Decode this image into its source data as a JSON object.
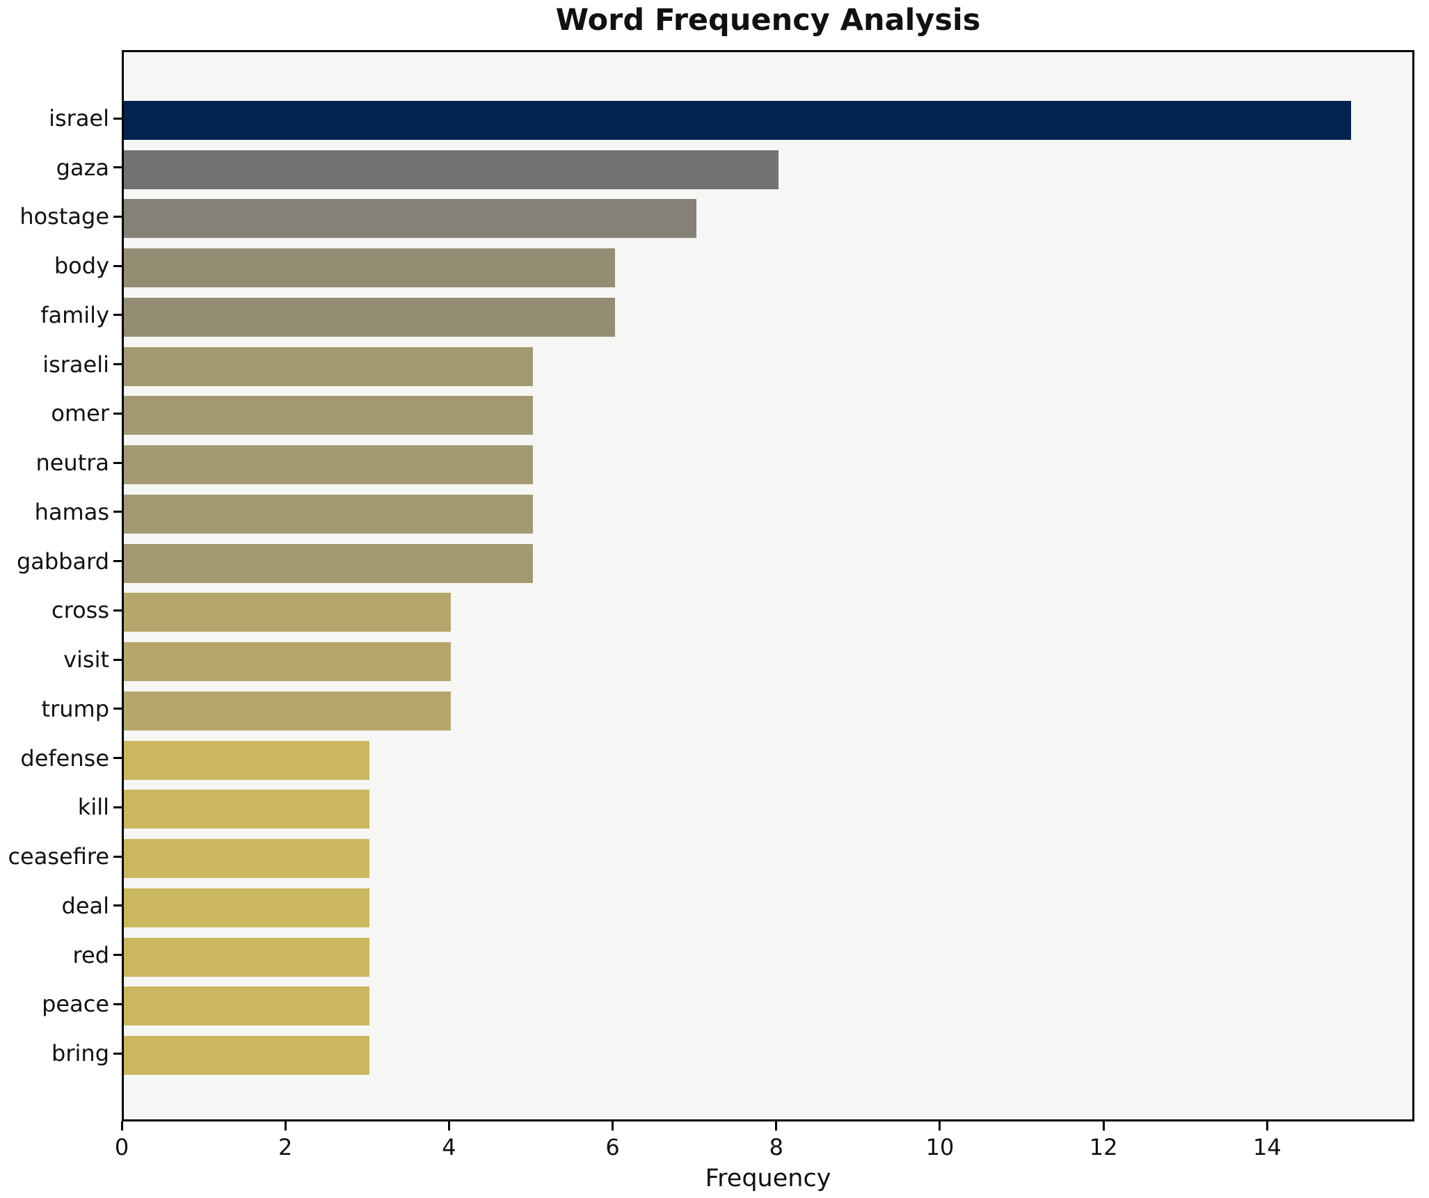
{
  "chart_data": {
    "type": "bar",
    "orientation": "horizontal",
    "title": "Word Frequency Analysis",
    "xlabel": "Frequency",
    "ylabel": "",
    "categories": [
      "israel",
      "gaza",
      "hostage",
      "body",
      "family",
      "israeli",
      "omer",
      "neutra",
      "hamas",
      "gabbard",
      "cross",
      "visit",
      "trump",
      "defense",
      "kill",
      "ceasefire",
      "deal",
      "red",
      "peace",
      "bring"
    ],
    "values": [
      15,
      8,
      7,
      6,
      6,
      5,
      5,
      5,
      5,
      5,
      4,
      4,
      4,
      3,
      3,
      3,
      3,
      3,
      3,
      3
    ],
    "colors": [
      "#042450",
      "#747270",
      "#868277",
      "#948d74",
      "#948d74",
      "#a49a72",
      "#a49a72",
      "#a49a72",
      "#a49a72",
      "#a49a72",
      "#b5a76c",
      "#b5a76c",
      "#b5a76c",
      "#cab75f",
      "#cab75f",
      "#cab75f",
      "#cab75f",
      "#cab75f",
      "#cab75f",
      "#cab75f"
    ],
    "x_ticks": [
      0,
      2,
      4,
      6,
      8,
      10,
      12,
      14
    ],
    "xlim": [
      0,
      15.8
    ],
    "grid": false,
    "legend": false,
    "plot_bg": "#f6f6f4",
    "figure_bg": "#ffffff",
    "bar_color_scheme": "cividis-reversed"
  }
}
